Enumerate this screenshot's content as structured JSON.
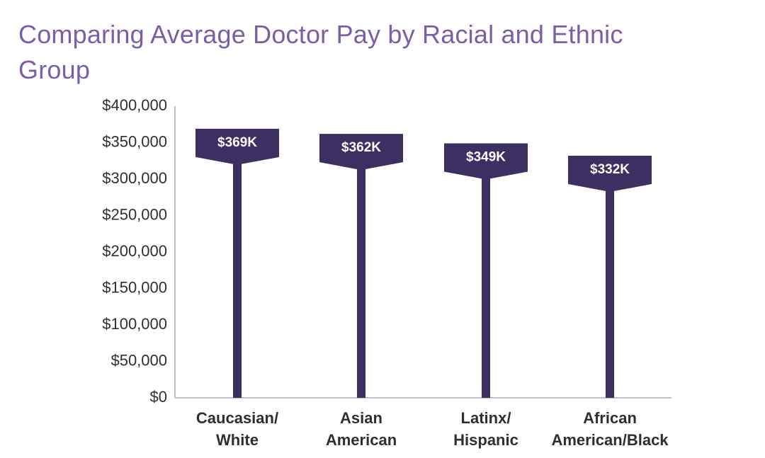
{
  "colors": {
    "title": "#7b5ea7",
    "bar": "#3e2f62",
    "axis": "#b9c2cc",
    "text": "#2f2f2f",
    "label_text": "#ffffff"
  },
  "chart_data": {
    "type": "bar",
    "title": "Comparing Average Doctor Pay by Racial and Ethnic Group",
    "xlabel": "",
    "ylabel": "",
    "ylim": [
      0,
      400000
    ],
    "yticks": [
      0,
      50000,
      100000,
      150000,
      200000,
      250000,
      300000,
      350000,
      400000
    ],
    "ytick_labels": [
      "$0",
      "$50,000",
      "$100,000",
      "$150,000",
      "$200,000",
      "$250,000",
      "$300,000",
      "$350,000",
      "$400,000"
    ],
    "categories": [
      [
        "Caucasian/",
        "White"
      ],
      [
        "Asian",
        "American"
      ],
      [
        "Latinx/",
        "Hispanic"
      ],
      [
        "African",
        "American/Black"
      ]
    ],
    "values": [
      369000,
      362000,
      349000,
      332000
    ],
    "data_labels": [
      "$369K",
      "$362K",
      "$349K",
      "$332K"
    ],
    "grid": false
  }
}
